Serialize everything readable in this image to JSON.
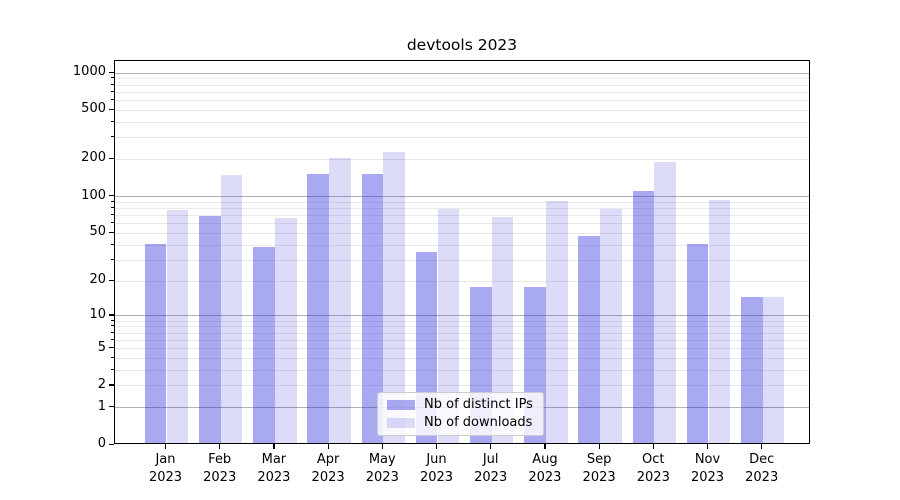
{
  "chart_data": {
    "type": "bar",
    "title": "devtools 2023",
    "categories": [
      "Jan",
      "Feb",
      "Mar",
      "Apr",
      "May",
      "Jun",
      "Jul",
      "Aug",
      "Sep",
      "Oct",
      "Nov",
      "Dec"
    ],
    "category_year": "2023",
    "series": [
      {
        "name": "Nb of distinct IPs",
        "color": "rgba(40,40,220,0.40)",
        "values": [
          39,
          67,
          37,
          146,
          147,
          34,
          17,
          17,
          46,
          106,
          39,
          14
        ]
      },
      {
        "name": "Nb of downloads",
        "color": "rgba(40,40,220,0.16)",
        "values": [
          75,
          145,
          64,
          198,
          222,
          76,
          66,
          88,
          76,
          185,
          90,
          14
        ]
      }
    ],
    "yscale": "log1p",
    "y_tick_values": [
      0,
      1,
      2,
      5,
      10,
      20,
      50,
      100,
      200,
      500,
      1000
    ],
    "y_tick_labels": [
      "0",
      "1",
      "2",
      "5",
      "10",
      "20",
      "50",
      "100",
      "200",
      "500",
      "1000"
    ],
    "major_grid_values": [
      1,
      10,
      100,
      1000
    ],
    "ylim": [
      0,
      1250
    ],
    "grid": "horizontal",
    "legend_position": "lower center",
    "colors": {
      "bar_dark": "rgba(40,40,220,0.40)",
      "bar_light": "rgba(40,40,220,0.16)",
      "major_grid": "#b0b0b0",
      "minor_grid": "#e9e9e9",
      "axis": "#000000",
      "text": "#000000",
      "legend_border": "#cccccc",
      "legend_bg": "rgba(255,255,255,0.8)"
    }
  }
}
